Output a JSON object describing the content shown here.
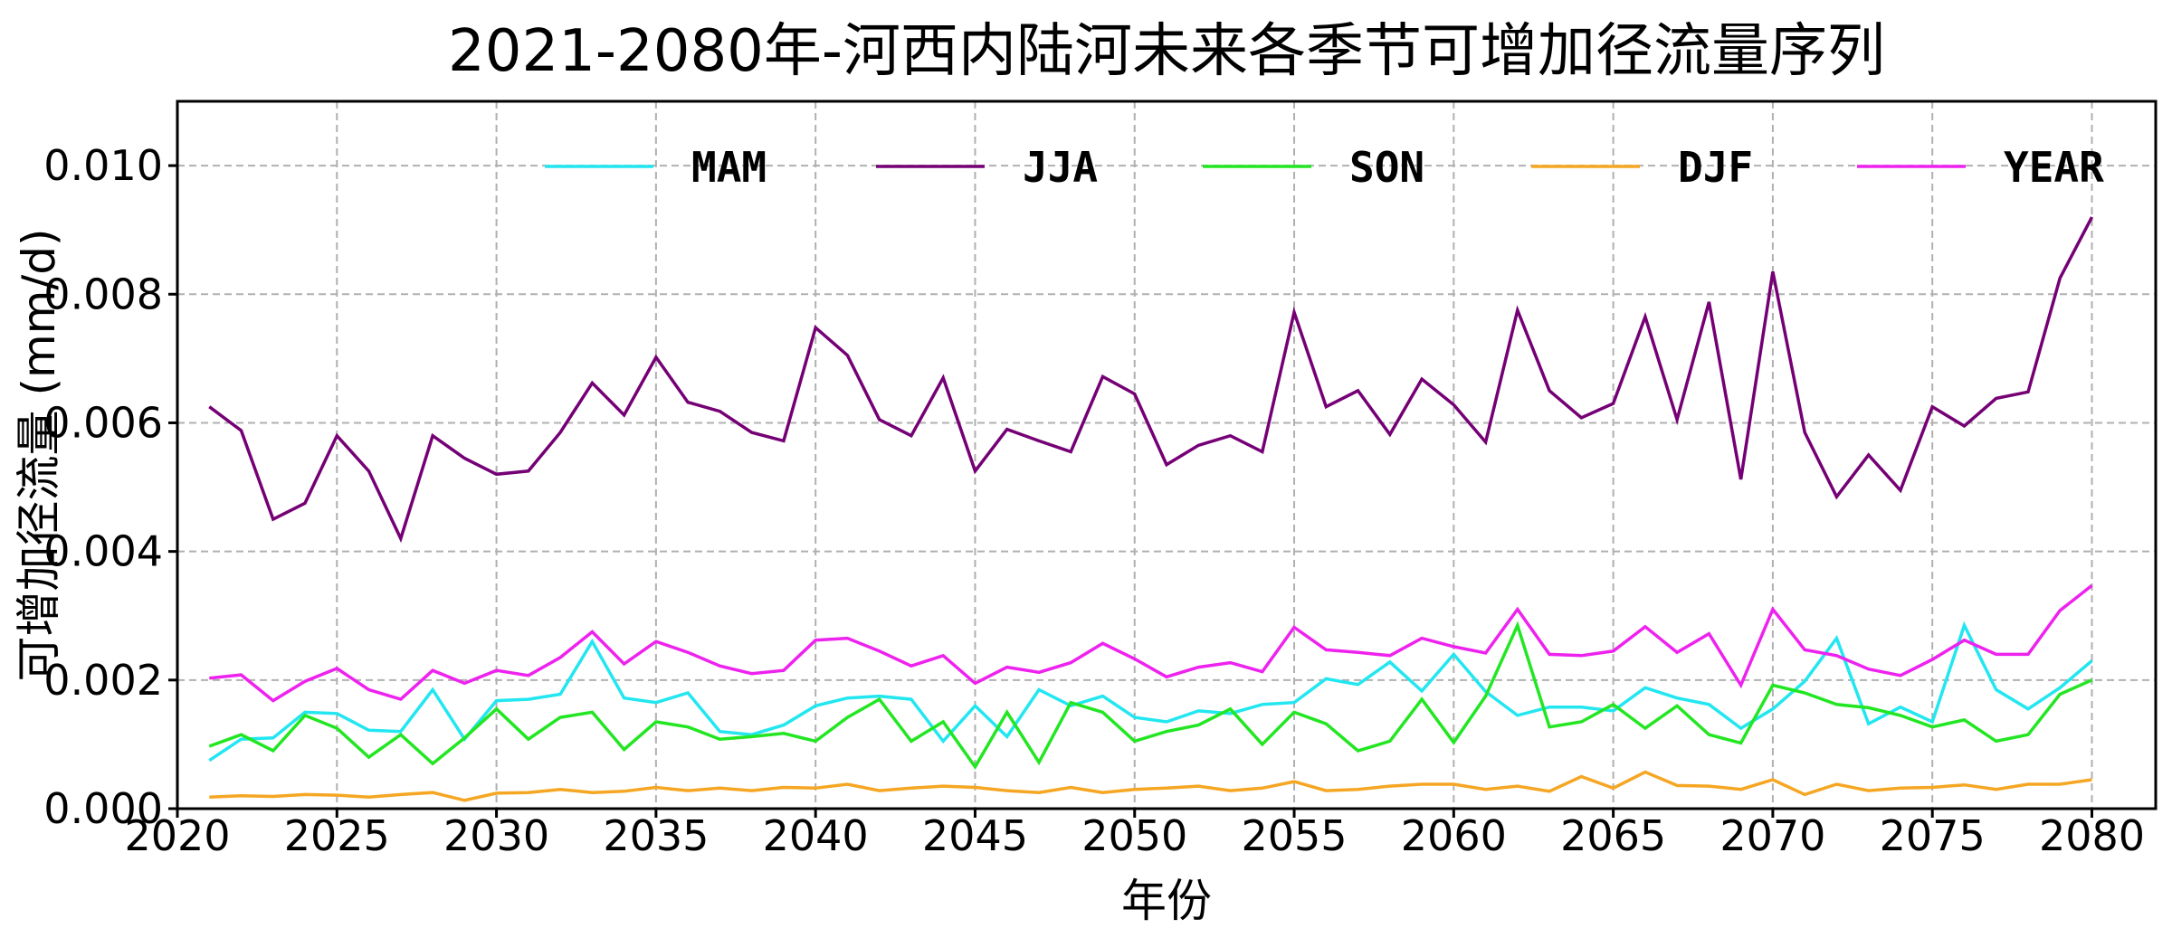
{
  "chart_data": {
    "type": "line",
    "title": "2021-2080年-河西内陆河未来各季节可增加径流量序列",
    "xlabel": "年份",
    "ylabel": "可增加径流量 (mm/d)",
    "xlim": [
      2020,
      2082
    ],
    "ylim": [
      0,
      0.011
    ],
    "xticks": [
      "2020",
      "2025",
      "2030",
      "2035",
      "2040",
      "2045",
      "2050",
      "2055",
      "2060",
      "2065",
      "2070",
      "2075",
      "2080"
    ],
    "yticks": [
      "0.000",
      "0.002",
      "0.004",
      "0.006",
      "0.008",
      "0.010"
    ],
    "grid": true,
    "legend_placement": "top-right",
    "x_start": 2021,
    "series": [
      {
        "name": "MAM",
        "color": "#22e6f0",
        "values": [
          0.00075,
          0.00108,
          0.0011,
          0.0015,
          0.00148,
          0.00122,
          0.0012,
          0.00185,
          0.00108,
          0.00168,
          0.0017,
          0.00178,
          0.0026,
          0.00172,
          0.00165,
          0.0018,
          0.0012,
          0.00115,
          0.0013,
          0.0016,
          0.00172,
          0.00175,
          0.0017,
          0.00105,
          0.0016,
          0.00112,
          0.00185,
          0.0016,
          0.00175,
          0.00142,
          0.00135,
          0.00152,
          0.00148,
          0.00162,
          0.00165,
          0.00202,
          0.00193,
          0.00228,
          0.00183,
          0.0024,
          0.00182,
          0.00145,
          0.00158,
          0.00158,
          0.00152,
          0.00188,
          0.00172,
          0.00162,
          0.00125,
          0.00155,
          0.00198,
          0.00265,
          0.00132,
          0.00158,
          0.00135,
          0.00285,
          0.00185,
          0.00155,
          0.00188,
          0.0023
        ]
      },
      {
        "name": "JJA",
        "color": "#750075",
        "values": [
          0.00625,
          0.00588,
          0.0045,
          0.00475,
          0.0058,
          0.00525,
          0.0042,
          0.0058,
          0.00545,
          0.0052,
          0.00525,
          0.00585,
          0.00662,
          0.00612,
          0.00702,
          0.00632,
          0.00618,
          0.00585,
          0.00572,
          0.00748,
          0.00705,
          0.00605,
          0.0058,
          0.0067,
          0.00525,
          0.0059,
          0.00572,
          0.00555,
          0.00672,
          0.00645,
          0.00535,
          0.00565,
          0.0058,
          0.00555,
          0.00772,
          0.00625,
          0.0065,
          0.00582,
          0.00668,
          0.00628,
          0.0057,
          0.00775,
          0.0065,
          0.00608,
          0.0063,
          0.00765,
          0.00605,
          0.00788,
          0.00512,
          0.00835,
          0.00585,
          0.00485,
          0.0055,
          0.00495,
          0.00625,
          0.00595,
          0.00638,
          0.00648,
          0.00825,
          0.0092
        ]
      },
      {
        "name": "SON",
        "color": "#22e622",
        "values": [
          0.00097,
          0.00115,
          0.0009,
          0.00145,
          0.00125,
          0.0008,
          0.00115,
          0.0007,
          0.0011,
          0.00155,
          0.00108,
          0.00142,
          0.0015,
          0.00092,
          0.00135,
          0.00127,
          0.00108,
          0.00112,
          0.00117,
          0.00105,
          0.00142,
          0.0017,
          0.00105,
          0.00135,
          0.00065,
          0.0015,
          0.00072,
          0.00165,
          0.0015,
          0.00105,
          0.0012,
          0.0013,
          0.00155,
          0.001,
          0.0015,
          0.00132,
          0.0009,
          0.00105,
          0.0017,
          0.00103,
          0.00175,
          0.00285,
          0.00127,
          0.00135,
          0.00162,
          0.00125,
          0.0016,
          0.00115,
          0.00102,
          0.00192,
          0.0018,
          0.00162,
          0.00157,
          0.00145,
          0.00127,
          0.00138,
          0.00105,
          0.00115,
          0.00178,
          0.002
        ]
      },
      {
        "name": "DJF",
        "color": "#f5a623",
        "values": [
          0.00018,
          0.0002,
          0.00019,
          0.00022,
          0.00021,
          0.00018,
          0.00022,
          0.00025,
          0.00013,
          0.00024,
          0.00025,
          0.0003,
          0.00025,
          0.00027,
          0.00033,
          0.00028,
          0.00032,
          0.00028,
          0.00033,
          0.00032,
          0.00038,
          0.00028,
          0.00032,
          0.00035,
          0.00033,
          0.00028,
          0.00025,
          0.00033,
          0.00025,
          0.0003,
          0.00032,
          0.00035,
          0.00028,
          0.00032,
          0.00042,
          0.00028,
          0.0003,
          0.00035,
          0.00038,
          0.00038,
          0.0003,
          0.00035,
          0.00027,
          0.0005,
          0.00032,
          0.00057,
          0.00036,
          0.00035,
          0.0003,
          0.00045,
          0.00022,
          0.00038,
          0.00028,
          0.00032,
          0.00033,
          0.00037,
          0.0003,
          0.00038,
          0.00038,
          0.00045
        ]
      },
      {
        "name": "YEAR",
        "color": "#ee22ee",
        "values": [
          0.00203,
          0.00208,
          0.00168,
          0.00198,
          0.00218,
          0.00185,
          0.0017,
          0.00215,
          0.00195,
          0.00215,
          0.00207,
          0.00235,
          0.00275,
          0.00225,
          0.0026,
          0.00243,
          0.00222,
          0.0021,
          0.00215,
          0.00262,
          0.00265,
          0.00245,
          0.00222,
          0.00238,
          0.00195,
          0.0022,
          0.00212,
          0.00227,
          0.00257,
          0.00233,
          0.00205,
          0.0022,
          0.00227,
          0.00213,
          0.00282,
          0.00247,
          0.00243,
          0.00238,
          0.00265,
          0.00252,
          0.00242,
          0.0031,
          0.0024,
          0.00238,
          0.00245,
          0.00283,
          0.00243,
          0.00272,
          0.00192,
          0.0031,
          0.00247,
          0.00238,
          0.00217,
          0.00207,
          0.00232,
          0.00262,
          0.0024,
          0.0024,
          0.00308,
          0.00347
        ]
      }
    ]
  }
}
